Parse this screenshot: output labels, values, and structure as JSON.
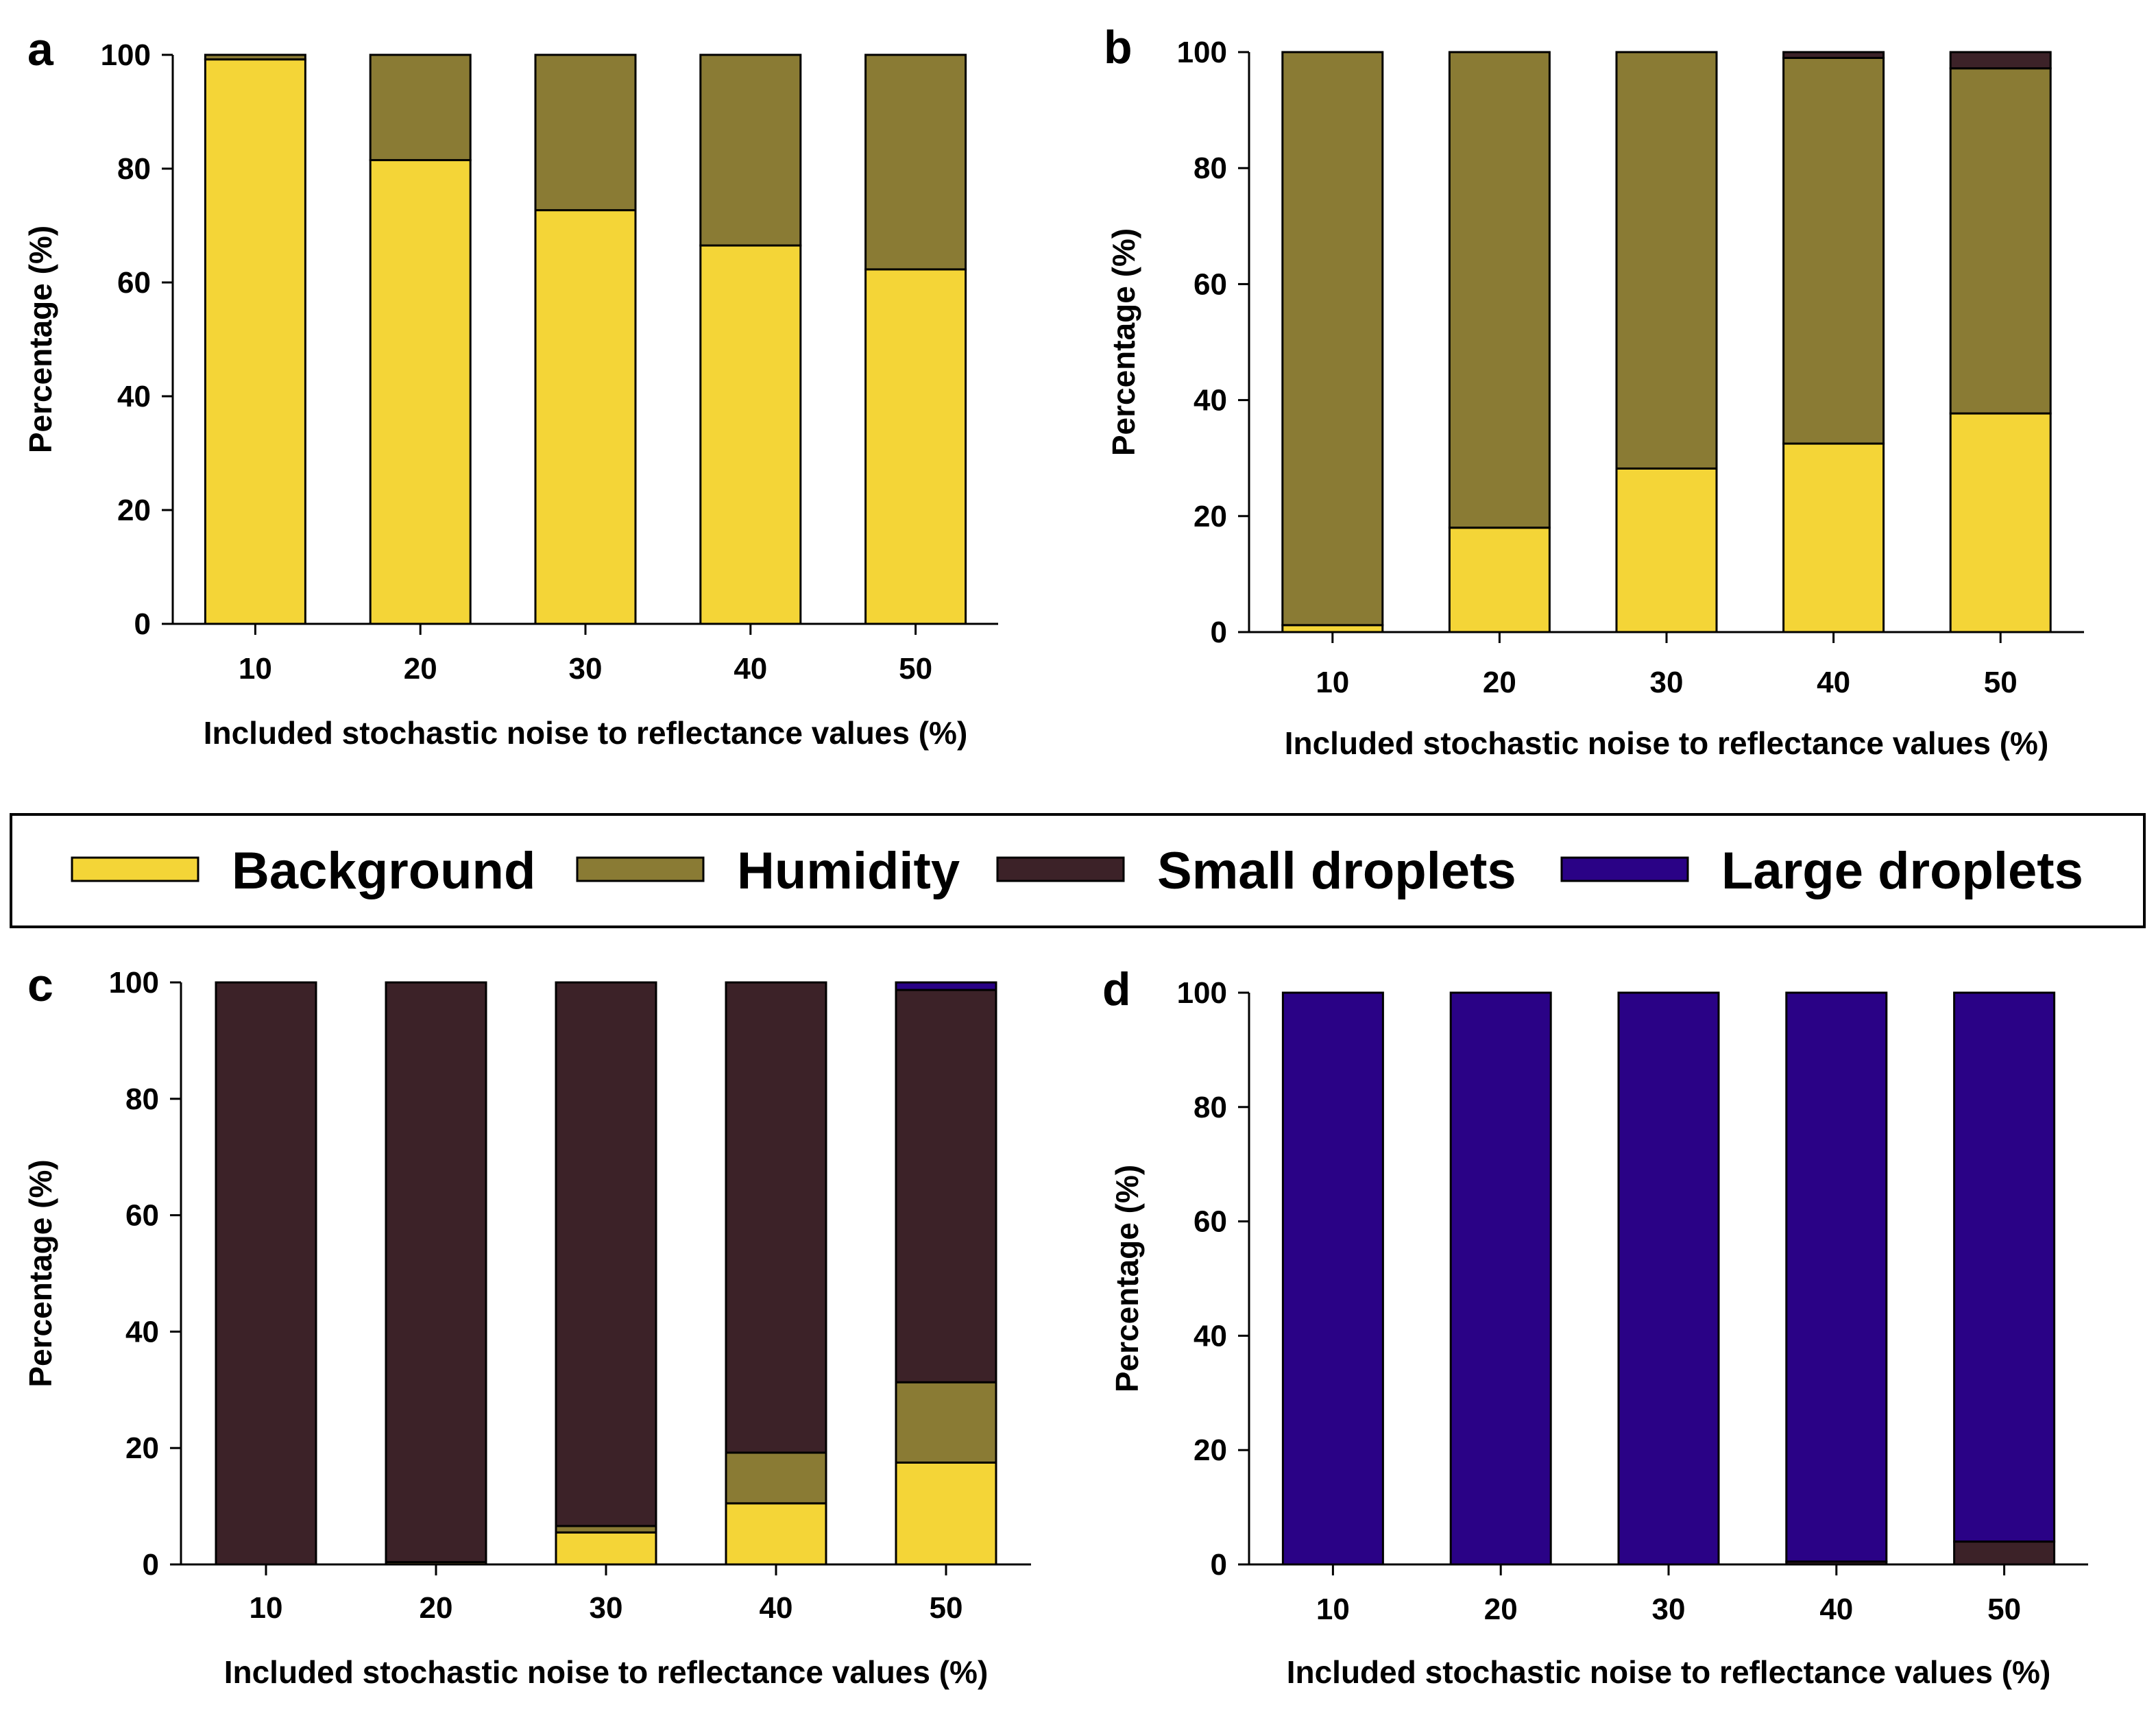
{
  "chart_data": {
    "type": "bar",
    "stacked": true,
    "colors": {
      "Background": "#F4D537",
      "Humidity": "#8A7B34",
      "Small droplets": "#3C2228",
      "Large droplets": "#2A0286"
    },
    "legend": [
      "Background",
      "Humidity",
      "Small droplets",
      "Large droplets"
    ],
    "panels": [
      {
        "label": "a",
        "categories": [
          "10",
          "20",
          "30",
          "40",
          "50"
        ],
        "series": [
          {
            "name": "Background",
            "values": [
              99.2,
              81.5,
              72.7,
              66.5,
              62.3
            ]
          },
          {
            "name": "Humidity",
            "values": [
              0.8,
              18.5,
              27.3,
              33.5,
              37.7
            ]
          },
          {
            "name": "Small droplets",
            "values": [
              0,
              0,
              0,
              0,
              0
            ]
          },
          {
            "name": "Large droplets",
            "values": [
              0,
              0,
              0,
              0,
              0
            ]
          }
        ],
        "xlabel": "Included stochastic noise to reflectance values (%)",
        "ylabel": "Percentage (%)",
        "ylim": [
          0,
          100
        ],
        "yticks": [
          "0",
          "20",
          "40",
          "60",
          "80",
          "100"
        ]
      },
      {
        "label": "b",
        "categories": [
          "10",
          "20",
          "30",
          "40",
          "50"
        ],
        "series": [
          {
            "name": "Background",
            "values": [
              1.2,
              18.0,
              28.2,
              32.5,
              37.7
            ]
          },
          {
            "name": "Humidity",
            "values": [
              98.8,
              82.0,
              71.8,
              66.5,
              59.5
            ]
          },
          {
            "name": "Small droplets",
            "values": [
              0,
              0,
              0,
              1.0,
              2.8
            ]
          },
          {
            "name": "Large droplets",
            "values": [
              0,
              0,
              0,
              0,
              0
            ]
          }
        ],
        "xlabel": "Included stochastic noise to reflectance values (%)",
        "ylabel": "Percentage (%)",
        "ylim": [
          0,
          100
        ],
        "yticks": [
          "0",
          "20",
          "40",
          "60",
          "80",
          "100"
        ]
      },
      {
        "label": "c",
        "categories": [
          "10",
          "20",
          "30",
          "40",
          "50"
        ],
        "series": [
          {
            "name": "Background",
            "values": [
              0,
              0,
              5.5,
              10.5,
              17.5
            ]
          },
          {
            "name": "Humidity",
            "values": [
              0,
              0.4,
              1.1,
              8.7,
              13.8
            ]
          },
          {
            "name": "Small droplets",
            "values": [
              100,
              99.6,
              93.4,
              80.8,
              67.4
            ]
          },
          {
            "name": "Large droplets",
            "values": [
              0,
              0,
              0,
              0,
              1.3
            ]
          }
        ],
        "xlabel": "Included stochastic noise to reflectance values (%)",
        "ylabel": "Percentage (%)",
        "ylim": [
          0,
          100
        ],
        "yticks": [
          "0",
          "20",
          "40",
          "60",
          "80",
          "100"
        ]
      },
      {
        "label": "d",
        "categories": [
          "10",
          "20",
          "30",
          "40",
          "50"
        ],
        "series": [
          {
            "name": "Background",
            "values": [
              0,
              0,
              0,
              0,
              0
            ]
          },
          {
            "name": "Humidity",
            "values": [
              0,
              0,
              0,
              0,
              0
            ]
          },
          {
            "name": "Small droplets",
            "values": [
              0,
              0,
              0,
              0.5,
              4.0
            ]
          },
          {
            "name": "Large droplets",
            "values": [
              100,
              100,
              100,
              99.5,
              96.0
            ]
          }
        ],
        "xlabel": "Included stochastic noise to reflectance values (%)",
        "ylabel": "Percentage (%)",
        "ylim": [
          0,
          100
        ],
        "yticks": [
          "0",
          "20",
          "40",
          "60",
          "80",
          "100"
        ]
      }
    ]
  }
}
